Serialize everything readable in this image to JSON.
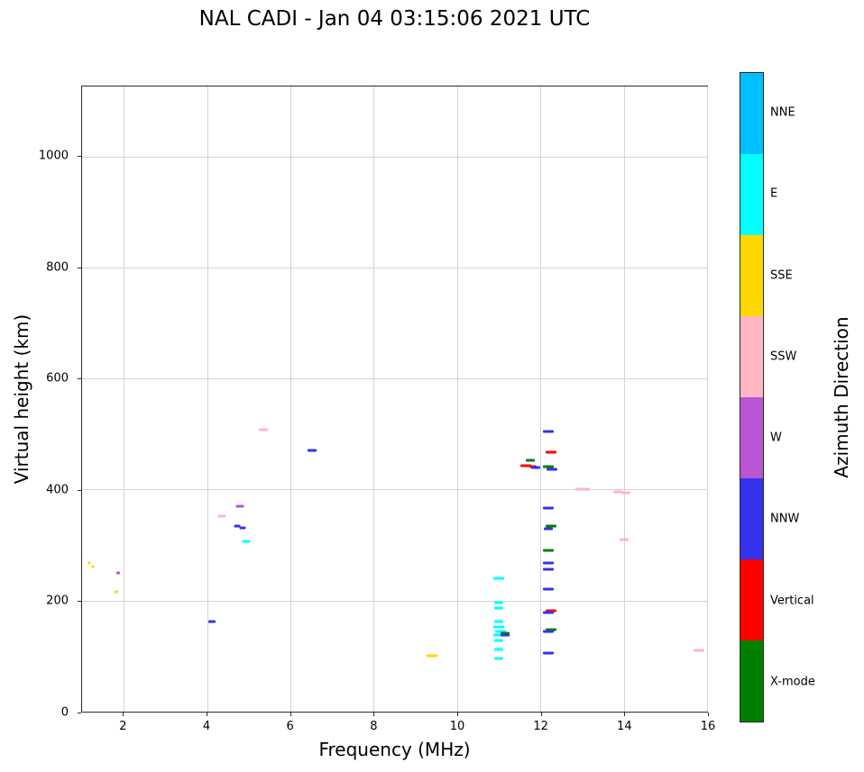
{
  "page": {
    "title": "NAL CADI - Jan 04 03:15:06 2021 UTC"
  },
  "chart_data": {
    "type": "scatter",
    "marker": "horizontal-dash",
    "title": "NAL CADI - Jan 04 03:15:06 2021 UTC",
    "xlabel": "Frequency (MHz)",
    "ylabel": "Virtual height (km)",
    "colorbar_label": "Azimuth Direction",
    "xlim": [
      1,
      16
    ],
    "ylim": [
      0,
      1126
    ],
    "xticks": [
      2,
      4,
      6,
      8,
      10,
      12,
      14,
      16
    ],
    "yticks": [
      0,
      200,
      400,
      600,
      800,
      1000
    ],
    "grid": true,
    "legend_position": "right-colorbar",
    "legend_categories": [
      {
        "label": "NNE",
        "color": "#00BFFF"
      },
      {
        "label": "E",
        "color": "#00FFFF"
      },
      {
        "label": "SSE",
        "color": "#FFD700"
      },
      {
        "label": "SSW",
        "color": "#FFB6C1"
      },
      {
        "label": "W",
        "color": "#BA55D3"
      },
      {
        "label": "NNW",
        "color": "#3333EE"
      },
      {
        "label": "Vertical",
        "color": "#FF0000"
      },
      {
        "label": "X-mode",
        "color": "#008000"
      }
    ],
    "points": [
      {
        "x": 1.18,
        "y": 268,
        "c": "SSE",
        "w": 3
      },
      {
        "x": 1.27,
        "y": 262,
        "c": "SSE",
        "w": 3
      },
      {
        "x": 1.82,
        "y": 215,
        "c": "SSE",
        "w": 4
      },
      {
        "x": 1.86,
        "y": 250,
        "c": "W",
        "w": 4
      },
      {
        "x": 4.12,
        "y": 163,
        "c": "NNW",
        "w": 8
      },
      {
        "x": 4.35,
        "y": 352,
        "c": "SSW",
        "w": 9
      },
      {
        "x": 4.78,
        "y": 370,
        "c": "W",
        "w": 9
      },
      {
        "x": 4.72,
        "y": 334,
        "c": "NNW",
        "w": 7
      },
      {
        "x": 4.86,
        "y": 331,
        "c": "NNW",
        "w": 7
      },
      {
        "x": 4.95,
        "y": 307,
        "c": "E",
        "w": 9
      },
      {
        "x": 5.35,
        "y": 508,
        "c": "SSW",
        "w": 10
      },
      {
        "x": 6.52,
        "y": 470,
        "c": "NNW",
        "w": 10
      },
      {
        "x": 9.4,
        "y": 100,
        "c": "SSE",
        "w": 12
      },
      {
        "x": 11.0,
        "y": 240,
        "c": "E",
        "w": 12
      },
      {
        "x": 11.0,
        "y": 196,
        "c": "E",
        "w": 10
      },
      {
        "x": 11.0,
        "y": 186,
        "c": "E",
        "w": 10
      },
      {
        "x": 11.0,
        "y": 162,
        "c": "E",
        "w": 10
      },
      {
        "x": 11.0,
        "y": 152,
        "c": "E",
        "w": 12
      },
      {
        "x": 11.05,
        "y": 145,
        "c": "E",
        "w": 12
      },
      {
        "x": 11.0,
        "y": 138,
        "c": "E",
        "w": 12
      },
      {
        "x": 11.15,
        "y": 141,
        "c": "X-mode",
        "w": 10
      },
      {
        "x": 11.15,
        "y": 138,
        "c": "NNW",
        "w": 10
      },
      {
        "x": 11.0,
        "y": 128,
        "c": "E",
        "w": 10
      },
      {
        "x": 11.0,
        "y": 112,
        "c": "E",
        "w": 10
      },
      {
        "x": 11.0,
        "y": 96,
        "c": "E",
        "w": 10
      },
      {
        "x": 11.75,
        "y": 452,
        "c": "X-mode",
        "w": 10
      },
      {
        "x": 11.65,
        "y": 443,
        "c": "Vertical",
        "w": 12
      },
      {
        "x": 11.82,
        "y": 442,
        "c": "Vertical",
        "w": 8
      },
      {
        "x": 11.88,
        "y": 440,
        "c": "NNW",
        "w": 10
      },
      {
        "x": 12.2,
        "y": 505,
        "c": "NNW",
        "w": 12
      },
      {
        "x": 12.25,
        "y": 468,
        "c": "Vertical",
        "w": 12
      },
      {
        "x": 12.2,
        "y": 441,
        "c": "X-mode",
        "w": 12
      },
      {
        "x": 12.28,
        "y": 437,
        "c": "NNW",
        "w": 12
      },
      {
        "x": 12.2,
        "y": 366,
        "c": "NNW",
        "w": 12
      },
      {
        "x": 12.25,
        "y": 334,
        "c": "X-mode",
        "w": 12
      },
      {
        "x": 12.18,
        "y": 329,
        "c": "NNW",
        "w": 10
      },
      {
        "x": 12.2,
        "y": 290,
        "c": "X-mode",
        "w": 12
      },
      {
        "x": 12.2,
        "y": 267,
        "c": "NNW",
        "w": 12
      },
      {
        "x": 12.2,
        "y": 256,
        "c": "NNW",
        "w": 12
      },
      {
        "x": 12.2,
        "y": 220,
        "c": "NNW",
        "w": 12
      },
      {
        "x": 12.25,
        "y": 182,
        "c": "Vertical",
        "w": 12
      },
      {
        "x": 12.18,
        "y": 178,
        "c": "NNW",
        "w": 12
      },
      {
        "x": 12.25,
        "y": 147,
        "c": "X-mode",
        "w": 12
      },
      {
        "x": 12.18,
        "y": 144,
        "c": "NNW",
        "w": 12
      },
      {
        "x": 12.2,
        "y": 105,
        "c": "NNW",
        "w": 12
      },
      {
        "x": 12.95,
        "y": 400,
        "c": "SSW",
        "w": 10
      },
      {
        "x": 13.1,
        "y": 400,
        "c": "SSW",
        "w": 8
      },
      {
        "x": 13.85,
        "y": 396,
        "c": "SSW",
        "w": 10
      },
      {
        "x": 14.05,
        "y": 394,
        "c": "SSW",
        "w": 10
      },
      {
        "x": 14.0,
        "y": 310,
        "c": "SSW",
        "w": 10
      },
      {
        "x": 15.8,
        "y": 110,
        "c": "SSW",
        "w": 12
      }
    ]
  }
}
